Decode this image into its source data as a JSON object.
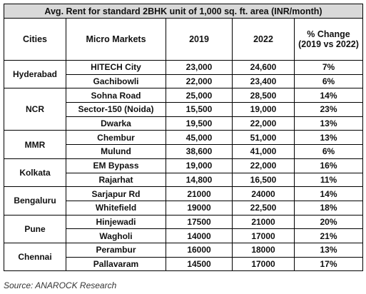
{
  "table": {
    "title": "Avg. Rent for standard 2BHK unit of 1,000 sq. ft. area (INR/month)",
    "headers": [
      "Cities",
      "Micro Markets",
      "2019",
      "2022",
      "% Change (2019 vs 2022)"
    ],
    "groups": [
      {
        "city": "Hyderabad",
        "rows": [
          [
            "HITECH City",
            "23,000",
            "24,600",
            "7%"
          ],
          [
            "Gachibowli",
            "22,000",
            "23,400",
            "6%"
          ]
        ]
      },
      {
        "city": "NCR",
        "rows": [
          [
            "Sohna Road",
            "25,000",
            "28,500",
            "14%"
          ],
          [
            "Sector-150 (Noida)",
            "15,500",
            "19,000",
            "23%"
          ],
          [
            "Dwarka",
            "19,500",
            "22,000",
            "13%"
          ]
        ]
      },
      {
        "city": "MMR",
        "rows": [
          [
            "Chembur",
            "45,000",
            "51,000",
            "13%"
          ],
          [
            "Mulund",
            "38,600",
            "41,000",
            "6%"
          ]
        ]
      },
      {
        "city": "Kolkata",
        "rows": [
          [
            "EM Bypass",
            "19,000",
            "22,000",
            "16%"
          ],
          [
            "Rajarhat",
            "14,800",
            "16,500",
            "11%"
          ]
        ]
      },
      {
        "city": "Bengaluru",
        "rows": [
          [
            "Sarjapur Rd",
            "21000",
            "24000",
            "14%"
          ],
          [
            "Whitefield",
            "19000",
            "22,500",
            "18%"
          ]
        ]
      },
      {
        "city": "Pune",
        "rows": [
          [
            "Hinjewadi",
            "17500",
            "21000",
            "20%"
          ],
          [
            "Wagholi",
            "14000",
            "17000",
            "21%"
          ]
        ]
      },
      {
        "city": "Chennai",
        "rows": [
          [
            "Perambur",
            "16000",
            "18000",
            "13%"
          ],
          [
            "Pallavaram",
            "14500",
            "17000",
            "17%"
          ]
        ]
      }
    ],
    "source": "Source: ANAROCK Research"
  }
}
